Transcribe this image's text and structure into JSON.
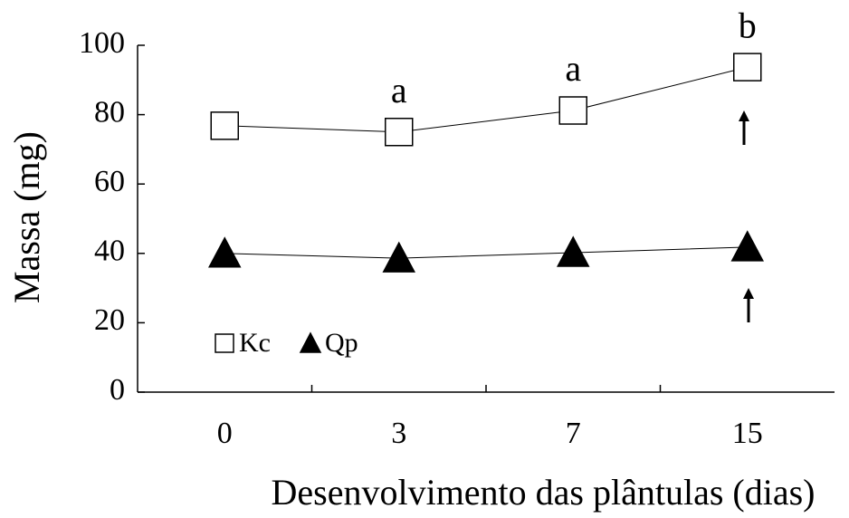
{
  "chart_data": {
    "type": "line",
    "x_label": "Desenvolvimento das plântulas (dias)",
    "y_label": "Massa (mg)",
    "categories": [
      "0",
      "3",
      "7",
      "15"
    ],
    "series": [
      {
        "name": "Kc",
        "color": "#000000",
        "marker": "square",
        "filled": false,
        "values": [
          76.8,
          75,
          81.2,
          93.7
        ],
        "labels": [
          null,
          "a",
          "a",
          "b"
        ]
      },
      {
        "name": "Qp",
        "color": "#000000",
        "marker": "triangle",
        "filled": true,
        "values": [
          40,
          38.6,
          40.2,
          41.8
        ]
      }
    ],
    "ylim": [
      0,
      100
    ],
    "yticks": [
      0,
      20,
      40,
      60,
      80,
      100
    ],
    "grid": false,
    "legend": "lower left"
  }
}
